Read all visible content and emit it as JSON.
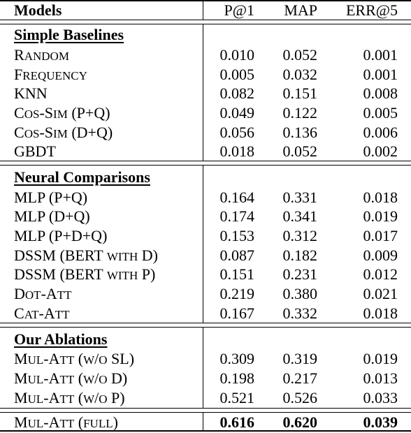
{
  "header": {
    "models": "Models",
    "p1": "P@1",
    "map": "MAP",
    "err5": "ERR@5"
  },
  "sections": [
    {
      "title": "Simple Baselines",
      "rows": [
        {
          "model": "Random",
          "p1": "0.010",
          "map": "0.052",
          "err5": "0.001"
        },
        {
          "model": "Frequency",
          "p1": "0.005",
          "map": "0.032",
          "err5": "0.001"
        },
        {
          "model": "KNN",
          "p1": "0.082",
          "map": "0.151",
          "err5": "0.008"
        },
        {
          "model": "Cos-Sim (P+Q)",
          "p1": "0.049",
          "map": "0.122",
          "err5": "0.005"
        },
        {
          "model": "Cos-Sim (D+Q)",
          "p1": "0.056",
          "map": "0.136",
          "err5": "0.006"
        },
        {
          "model": "GBDT",
          "p1": "0.018",
          "map": "0.052",
          "err5": "0.002"
        }
      ]
    },
    {
      "title": "Neural Comparisons",
      "rows": [
        {
          "model": "MLP (P+Q)",
          "p1": "0.164",
          "map": "0.331",
          "err5": "0.018"
        },
        {
          "model": "MLP (D+Q)",
          "p1": "0.174",
          "map": "0.341",
          "err5": "0.019"
        },
        {
          "model": "MLP (P+D+Q)",
          "p1": "0.153",
          "map": "0.312",
          "err5": "0.017"
        },
        {
          "model": "DSSM (BERT with D)",
          "p1": "0.087",
          "map": "0.182",
          "err5": "0.009"
        },
        {
          "model": "DSSM (BERT with P)",
          "p1": "0.151",
          "map": "0.231",
          "err5": "0.012"
        },
        {
          "model": "Dot-Att",
          "p1": "0.219",
          "map": "0.380",
          "err5": "0.021"
        },
        {
          "model": "Cat-Att",
          "p1": "0.167",
          "map": "0.332",
          "err5": "0.018"
        }
      ]
    },
    {
      "title": "Our Ablations",
      "rows": [
        {
          "model": "Mul-Att (w/o SL)",
          "p1": "0.309",
          "map": "0.319",
          "err5": "0.019"
        },
        {
          "model": "Mul-Att (w/o D)",
          "p1": "0.198",
          "map": "0.217",
          "err5": "0.013"
        },
        {
          "model": "Mul-Att (w/o P)",
          "p1": "0.521",
          "map": "0.526",
          "err5": "0.033"
        }
      ]
    }
  ],
  "final": {
    "model": "Mul-Att (full)",
    "p1": "0.616",
    "map": "0.620",
    "err5": "0.039"
  }
}
